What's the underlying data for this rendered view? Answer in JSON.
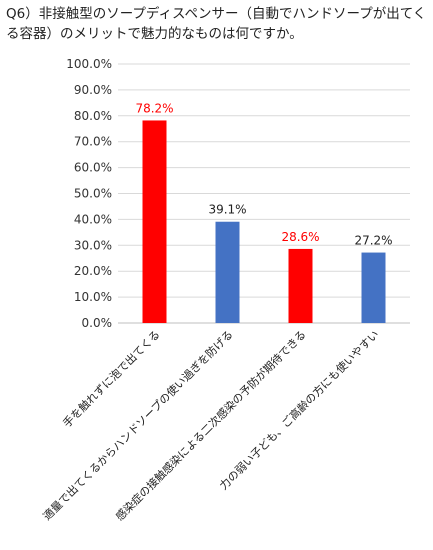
{
  "question": {
    "text": "Q6）非接触型のソープディスペンサー（自動でハンドソープが出てくる容器）のメリットで魅力的なものは何ですか。"
  },
  "colors": {
    "highlight": "#ff0000",
    "normal": "#4472c4",
    "grid": "#d9d9d9",
    "value_normal": "#222222"
  },
  "chart_data": {
    "type": "bar",
    "title": "",
    "xlabel": "",
    "ylabel": "",
    "ylim": [
      0,
      100
    ],
    "yticks": [
      "0.0%",
      "10.0%",
      "20.0%",
      "30.0%",
      "40.0%",
      "50.0%",
      "60.0%",
      "70.0%",
      "80.0%",
      "90.0%",
      "100.0%"
    ],
    "grid": true,
    "legend": "none",
    "categories": [
      "手を触れずに泡で出てくる",
      "適量で出てくるからハンドソープの使い過ぎを防げる",
      "感染症の接触感染による二次感染の予防が期待できる",
      "力の弱い子ども、ご高齢の方にも使いやすい"
    ],
    "values": [
      78.2,
      39.1,
      28.6,
      27.2
    ],
    "value_labels": [
      "78.2%",
      "39.1%",
      "28.6%",
      "27.2%"
    ],
    "highlighted": [
      true,
      false,
      true,
      false
    ]
  }
}
